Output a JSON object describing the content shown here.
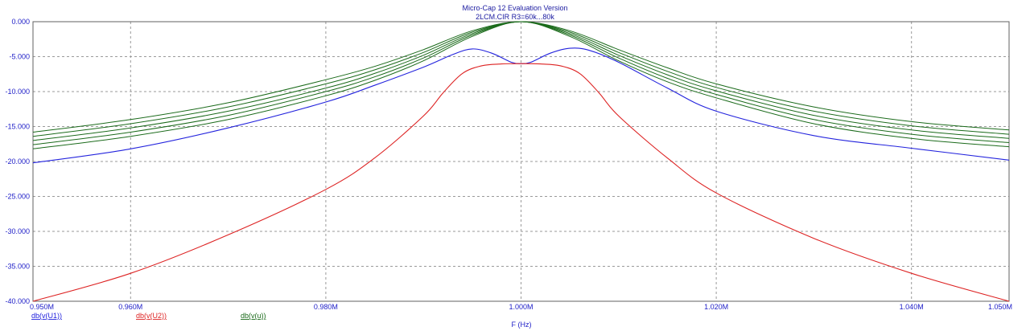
{
  "chart_data": {
    "type": "line",
    "title": "Micro-Cap 12 Evaluation Version",
    "subtitle": "2LCM.CIR R3=60k...80k",
    "xlabel": "F (Hz)",
    "ylabel": "",
    "xlim": [
      0.95,
      1.05
    ],
    "ylim": [
      -40,
      0
    ],
    "x_unit": "MHz",
    "x_ticks": [
      "0.950M",
      "0.960M",
      "0.980M",
      "1.000M",
      "1.020M",
      "1.040M",
      "1.050M"
    ],
    "x_tick_values": [
      0.95,
      0.96,
      0.98,
      1.0,
      1.02,
      1.04,
      1.05
    ],
    "y_ticks": [
      "0.000",
      "-5.000",
      "-10.000",
      "-15.000",
      "-20.000",
      "-25.000",
      "-30.000",
      "-35.000",
      "-40.000"
    ],
    "y_tick_values": [
      0,
      -5,
      -10,
      -15,
      -20,
      -25,
      -30,
      -35,
      -40
    ],
    "grid": true,
    "legend_placement": "bottom-left",
    "series": [
      {
        "name": "db(v(U1))",
        "color": "#2222dd",
        "x": [
          0.95,
          0.96,
          0.97,
          0.98,
          0.985,
          0.99,
          0.993,
          0.995,
          0.997,
          0.999,
          1.0,
          1.001,
          1.003,
          1.005,
          1.007,
          1.01,
          1.015,
          1.02,
          1.03,
          1.04,
          1.05
        ],
        "y": [
          -20.2,
          -18.2,
          -15.2,
          -11.5,
          -9.1,
          -6.5,
          -4.7,
          -3.9,
          -4.5,
          -5.8,
          -6.0,
          -5.8,
          -4.5,
          -3.8,
          -4.1,
          -5.8,
          -9.5,
          -12.8,
          -16.3,
          -18.1,
          -19.8
        ]
      },
      {
        "name": "db(v(U2))",
        "color": "#dd2222",
        "x": [
          0.95,
          0.96,
          0.97,
          0.98,
          0.985,
          0.99,
          0.992,
          0.994,
          0.996,
          0.998,
          1.0,
          1.002,
          1.004,
          1.006,
          1.008,
          1.01,
          1.015,
          1.02,
          1.03,
          1.04,
          1.05
        ],
        "y": [
          -40.0,
          -36.0,
          -30.5,
          -24.0,
          -19.5,
          -13.5,
          -10.2,
          -7.4,
          -6.3,
          -6.05,
          -6.0,
          -6.05,
          -6.3,
          -7.4,
          -10.2,
          -13.5,
          -19.5,
          -24.5,
          -31.0,
          -36.0,
          -40.0
        ]
      },
      {
        "name": "db(v(u))",
        "color": "#1a6a1a",
        "curves": [
          {
            "x": [
              0.95,
              0.96,
              0.97,
              0.98,
              0.985,
              0.99,
              0.995,
              1.0,
              1.005,
              1.01,
              1.015,
              1.02,
              1.03,
              1.04,
              1.05
            ],
            "y": [
              -15.8,
              -14.0,
              -11.6,
              -8.3,
              -6.4,
              -4.0,
              -1.3,
              0.0,
              -1.3,
              -4.0,
              -6.6,
              -8.9,
              -12.2,
              -14.3,
              -15.5
            ]
          },
          {
            "x": [
              0.95,
              0.96,
              0.97,
              0.98,
              0.985,
              0.99,
              0.995,
              1.0,
              1.005,
              1.01,
              1.015,
              1.02,
              1.03,
              1.04,
              1.05
            ],
            "y": [
              -16.4,
              -14.6,
              -12.2,
              -8.9,
              -6.9,
              -4.4,
              -1.5,
              0.0,
              -1.5,
              -4.4,
              -7.1,
              -9.4,
              -12.8,
              -14.9,
              -16.1
            ]
          },
          {
            "x": [
              0.95,
              0.96,
              0.97,
              0.98,
              0.985,
              0.99,
              0.995,
              1.0,
              1.005,
              1.01,
              1.015,
              1.02,
              1.03,
              1.04,
              1.05
            ],
            "y": [
              -17.0,
              -15.2,
              -12.8,
              -9.5,
              -7.4,
              -4.8,
              -1.7,
              0.0,
              -1.7,
              -4.8,
              -7.6,
              -9.9,
              -13.4,
              -15.5,
              -16.7
            ]
          },
          {
            "x": [
              0.95,
              0.96,
              0.97,
              0.98,
              0.985,
              0.99,
              0.995,
              1.0,
              1.005,
              1.01,
              1.015,
              1.02,
              1.03,
              1.04,
              1.05
            ],
            "y": [
              -17.6,
              -15.8,
              -13.4,
              -10.0,
              -7.9,
              -5.2,
              -1.9,
              0.0,
              -1.9,
              -5.2,
              -8.1,
              -10.4,
              -14.0,
              -16.1,
              -17.3
            ]
          },
          {
            "x": [
              0.95,
              0.96,
              0.97,
              0.98,
              0.985,
              0.99,
              0.995,
              1.0,
              1.005,
              1.01,
              1.015,
              1.02,
              1.03,
              1.04,
              1.05
            ],
            "y": [
              -18.2,
              -16.4,
              -14.0,
              -10.6,
              -8.4,
              -5.6,
              -2.1,
              0.0,
              -2.1,
              -5.6,
              -8.6,
              -10.9,
              -14.6,
              -16.7,
              -17.9
            ]
          }
        ]
      }
    ]
  }
}
